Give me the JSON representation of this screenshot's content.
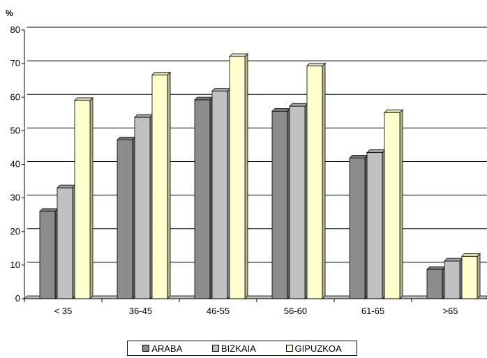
{
  "chart_data": {
    "type": "bar",
    "title": "",
    "ylabel": "%",
    "xlabel": "",
    "categories": [
      "< 35",
      "36-45",
      "46-55",
      "56-60",
      "61-65",
      ">65"
    ],
    "series": [
      {
        "name": "ARABA",
        "color": "#8c8c8c",
        "values": [
          26,
          47.3,
          59.2,
          55.8,
          41.9,
          8.7
        ]
      },
      {
        "name": "BIZKAIA",
        "color": "#c0c0c0",
        "values": [
          33,
          54,
          61.8,
          57.3,
          43.5,
          11.2
        ]
      },
      {
        "name": "GIPUZKOA",
        "color": "#ffffcc",
        "values": [
          59,
          66.6,
          72.1,
          69.3,
          55.4,
          12.6
        ]
      }
    ],
    "ylim": [
      0,
      80
    ],
    "yticks": [
      0,
      10,
      20,
      30,
      40,
      50,
      60,
      70,
      80
    ],
    "grid": true,
    "legend_position": "bottom"
  }
}
